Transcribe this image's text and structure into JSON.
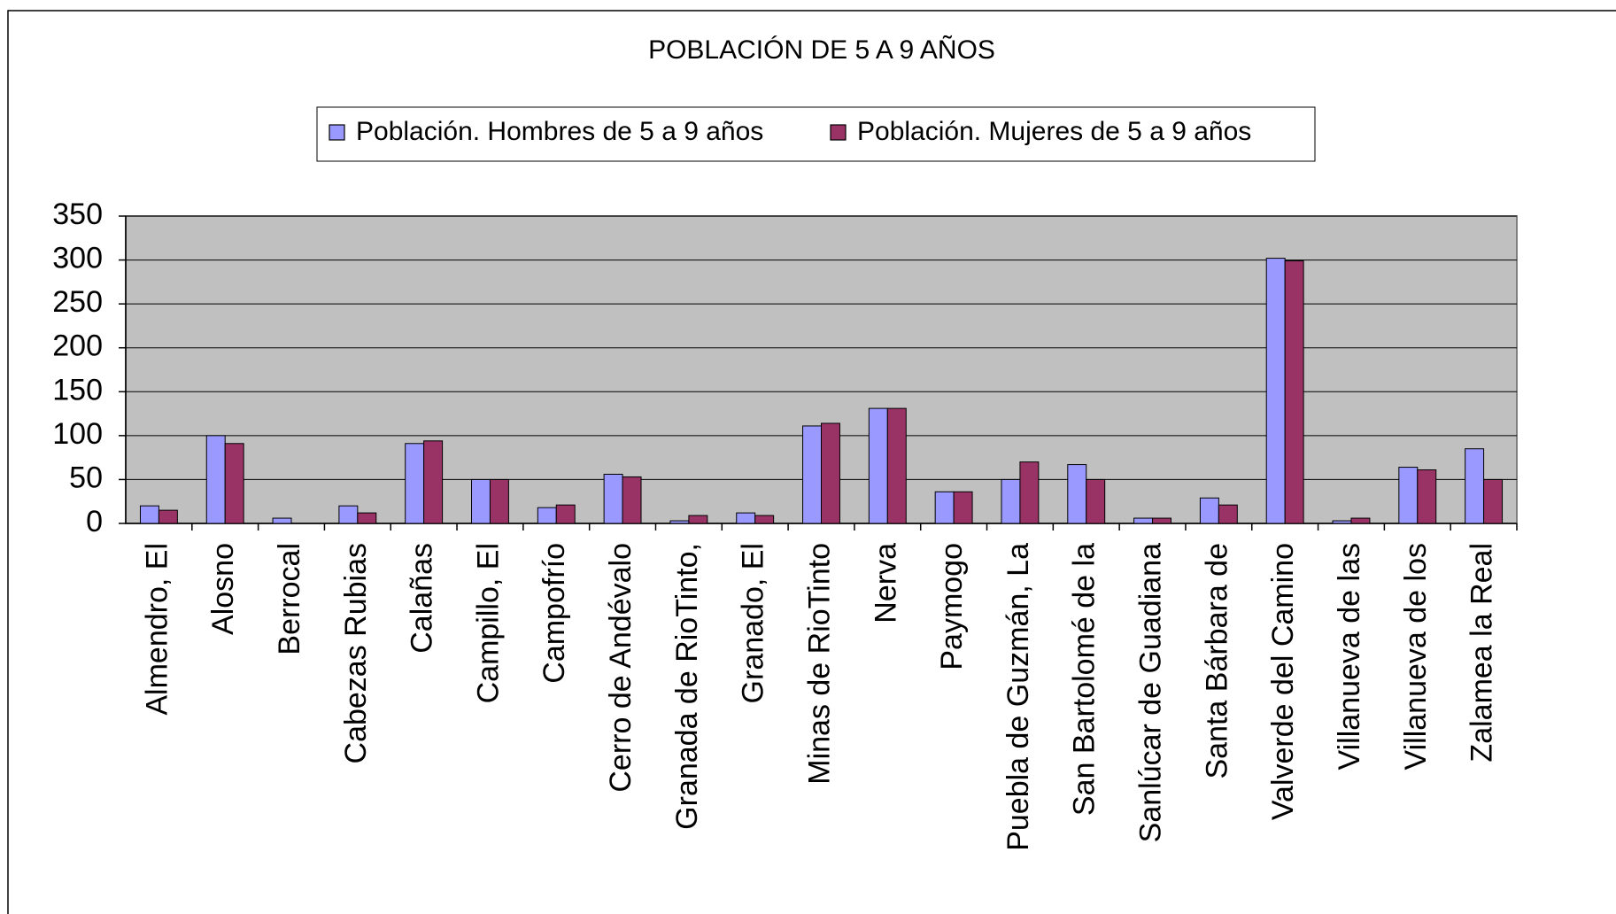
{
  "chart_data": {
    "type": "bar",
    "title": "POBLACIÓN DE 5 A 9 AÑOS",
    "categories": [
      "Almendro, El",
      "Alosno",
      "Berrocal",
      "Cabezas Rubias",
      "Calañas",
      "Campillo, El",
      "Campofrío",
      "Cerro de Andévalo",
      "Granada de RioTinto,",
      "Granado, El",
      "Minas de RioTinto",
      "Nerva",
      "Paymogo",
      "Puebla de Guzmán, La",
      "San Bartolomé de la",
      "Sanlúcar de Guadiana",
      "Santa Bárbara de",
      "Valverde del Camino",
      "Villanueva de las",
      "Villanueva de los",
      "Zalamea la Real"
    ],
    "series": [
      {
        "name": "Población. Hombres de 5 a 9 años",
        "color": "#9999ff",
        "values": [
          20,
          100,
          6,
          20,
          91,
          50,
          18,
          56,
          3,
          12,
          111,
          131,
          36,
          50,
          67,
          6,
          29,
          302,
          3,
          64,
          85
        ]
      },
      {
        "name": "Población. Mujeres de 5 a 9 años",
        "color": "#993366",
        "values": [
          15,
          91,
          0,
          12,
          94,
          50,
          21,
          53,
          9,
          9,
          114,
          131,
          36,
          70,
          50,
          6,
          21,
          299,
          6,
          61,
          50
        ]
      }
    ],
    "ylim": [
      0,
      350
    ],
    "yticks": [
      0,
      50,
      100,
      150,
      200,
      250,
      300,
      350
    ],
    "grid": true,
    "legend": "top",
    "plot_background": "#c0c0c0"
  }
}
